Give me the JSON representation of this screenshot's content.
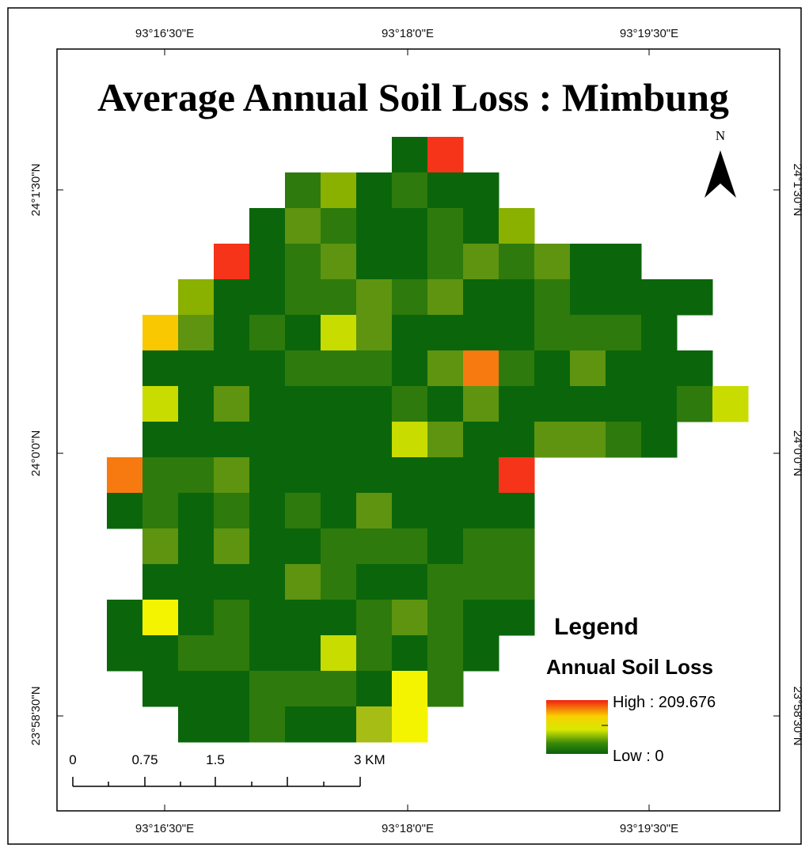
{
  "map": {
    "title": "Average Annual Soil Loss : Mimbung",
    "north": "N",
    "longitude_labels": [
      "93°16'30\"E",
      "93°18'0\"E",
      "93°19'30\"E"
    ],
    "latitude_labels": [
      "24°1'30\"N",
      "24°0'0\"N",
      "23°58'30\"N"
    ],
    "legend": {
      "heading": "Legend",
      "title": "Annual Soil Loss",
      "high": "High : 209.676",
      "low": "Low : 0"
    },
    "scale_bar": [
      "0",
      "0.75",
      "1.5",
      "3 KM"
    ]
  }
}
